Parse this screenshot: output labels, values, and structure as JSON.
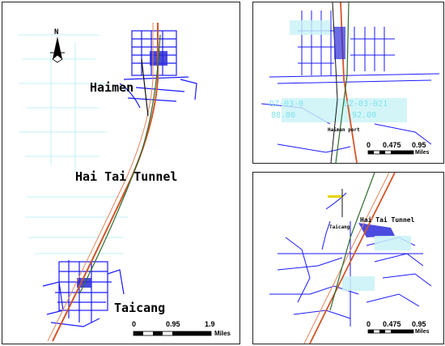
{
  "main_map": {
    "north_label": "N",
    "labels": {
      "haimen": "Haimen",
      "tunnel": "Hai Tai Tunnel",
      "taicang": "Taicang"
    },
    "scale": {
      "ticks": [
        "0",
        "0.95",
        "1.9"
      ],
      "unit": "Miles"
    }
  },
  "inset_top": {
    "labels": {
      "code_left": "DZ-03-0",
      "value_left": "88.00",
      "code_right": "DZ-03-021",
      "value_right": "92.00",
      "haimen_port": "Haimen port"
    },
    "scale": {
      "ticks": [
        "0",
        "0.475",
        "0.95"
      ],
      "unit": "Miles"
    }
  },
  "inset_bottom": {
    "labels": {
      "tunnel": "Hai Tai Tunnel",
      "taicang": "Taicang"
    },
    "scale": {
      "ticks": [
        "0",
        "0.475",
        "0.95"
      ],
      "unit": "Miles"
    }
  },
  "colors": {
    "road": "#1a1aff",
    "cyan": "#7fe3ee",
    "tunnel_line": "#d2552a",
    "route_line": "#2e6b2e",
    "frame": "#222222"
  }
}
